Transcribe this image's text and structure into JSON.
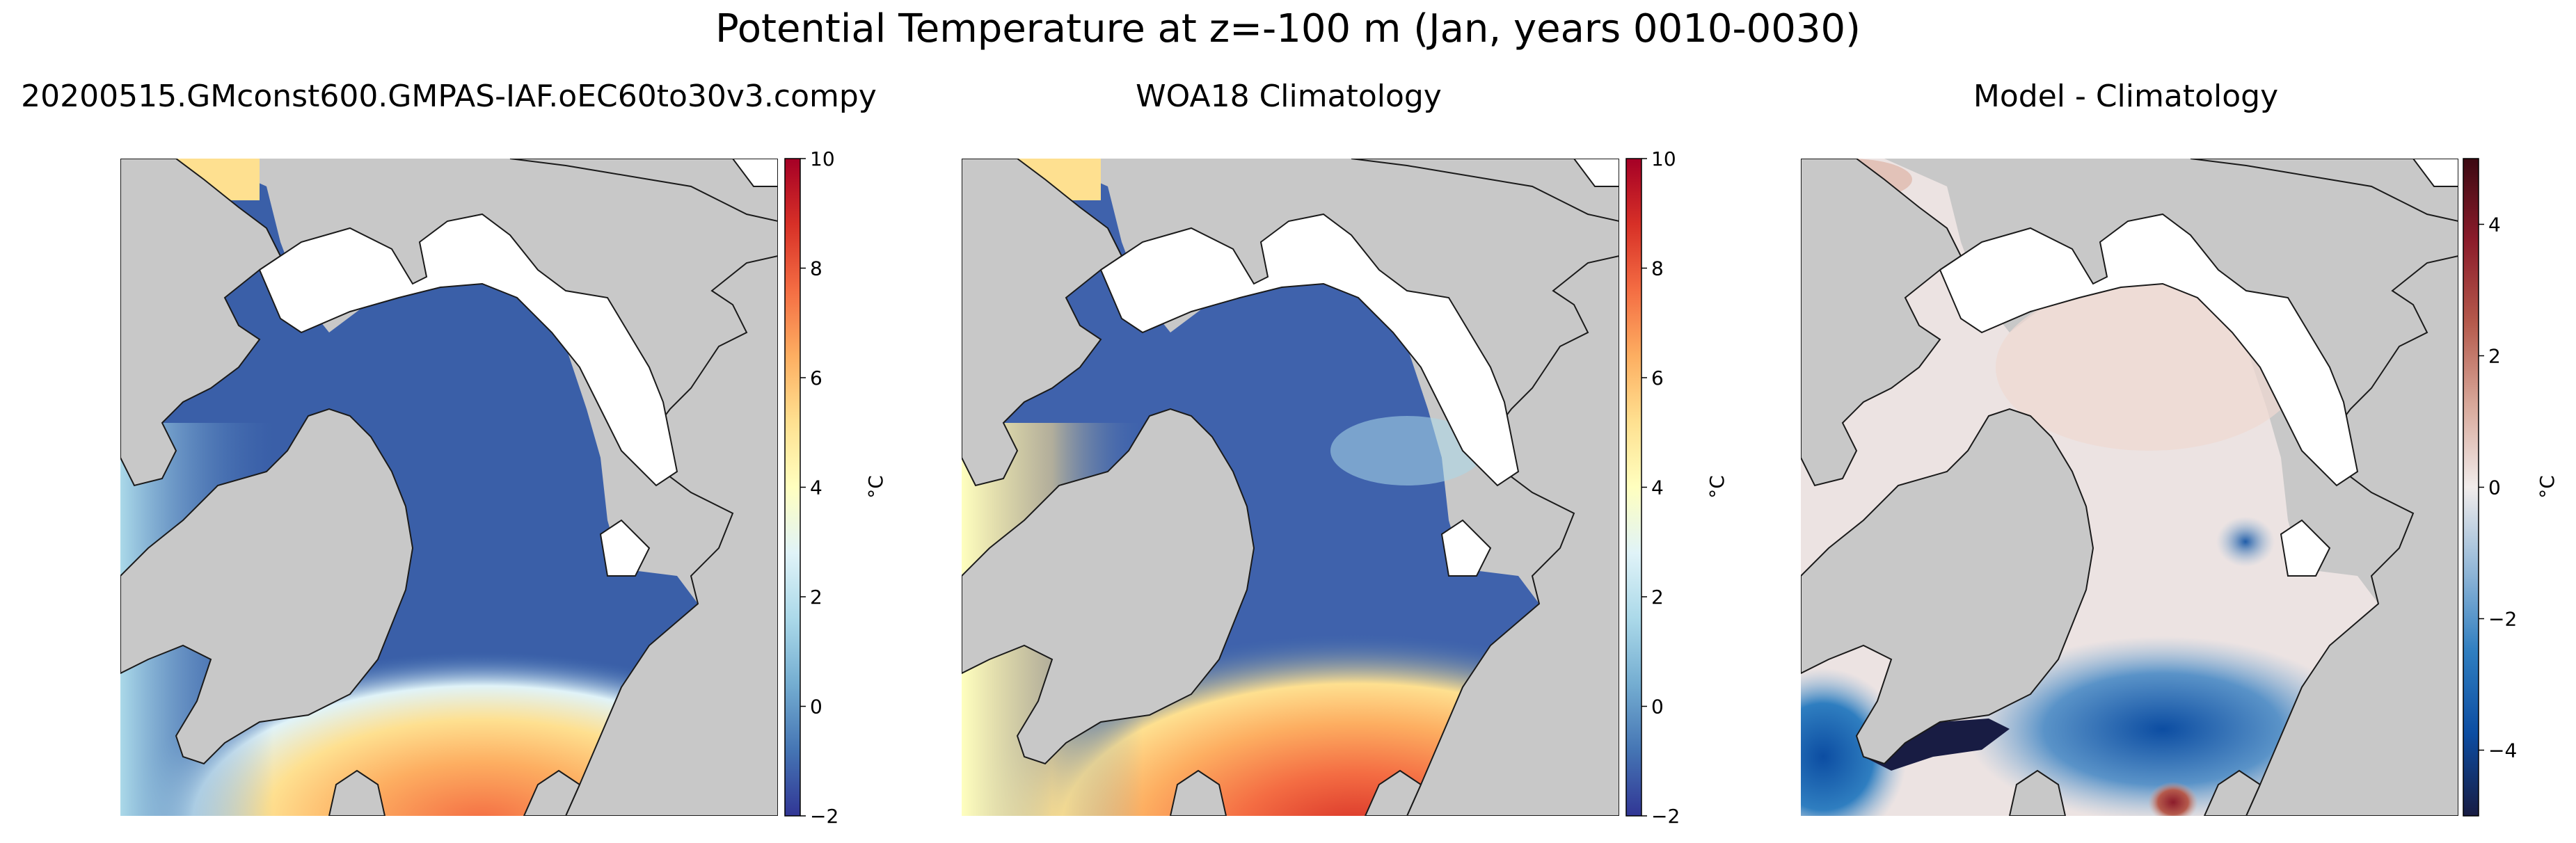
{
  "figure": {
    "title": "Potential Temperature at z=-100 m (Jan, years 0010-0030)",
    "land_color": "#c8c8c8",
    "ice_color": "#ffffff",
    "coast_color": "#1a1a1a"
  },
  "panels": [
    {
      "id": "model",
      "title": "20200515.GMconst600.GMPAS-IAF.oEC60to30v3.compy",
      "colormap": "RdYlBu_r",
      "colorbar": {
        "unit": "°C",
        "min": -2,
        "max": 10,
        "ticks": [
          -2,
          0,
          2,
          4,
          6,
          8,
          10
        ],
        "tick_labels": [
          "−2",
          "0",
          "2",
          "4",
          "6",
          "8",
          "10"
        ],
        "stops": [
          "#313695",
          "#4575b4",
          "#74add1",
          "#abd9e9",
          "#e0f3f8",
          "#ffffbf",
          "#fee090",
          "#fdae61",
          "#f46d43",
          "#d73027",
          "#a50026"
        ]
      }
    },
    {
      "id": "climatology",
      "title": "WOA18 Climatology",
      "colormap": "RdYlBu_r",
      "colorbar": {
        "unit": "°C",
        "min": -2,
        "max": 10,
        "ticks": [
          -2,
          0,
          2,
          4,
          6,
          8,
          10
        ],
        "tick_labels": [
          "−2",
          "0",
          "2",
          "4",
          "6",
          "8",
          "10"
        ],
        "stops": [
          "#313695",
          "#4575b4",
          "#74add1",
          "#abd9e9",
          "#e0f3f8",
          "#ffffbf",
          "#fee090",
          "#fdae61",
          "#f46d43",
          "#d73027",
          "#a50026"
        ]
      }
    },
    {
      "id": "difference",
      "title": "Model - Climatology",
      "colormap": "balance",
      "colorbar": {
        "unit": "°C",
        "min": -5,
        "max": 5,
        "ticks": [
          -4,
          -2,
          0,
          2,
          4
        ],
        "tick_labels": [
          "−4",
          "−2",
          "0",
          "2",
          "4"
        ],
        "stops": [
          "#181c43",
          "#0c4da2",
          "#2f7ec0",
          "#93b8d8",
          "#f1eceb",
          "#d8a89a",
          "#b55a4c",
          "#8c1c2b",
          "#3c0912"
        ]
      }
    }
  ]
}
